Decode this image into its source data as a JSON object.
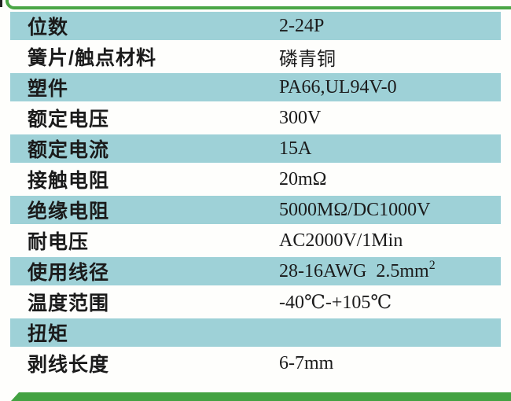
{
  "colors": {
    "row_shade_teal": "#9ed1d7",
    "accent_green": "#43a242",
    "text": "#1b1b1b"
  },
  "table": {
    "rows": [
      {
        "label": "位数",
        "value": "2-24P"
      },
      {
        "label": "簧片/触点材料",
        "value": "磷青铜"
      },
      {
        "label": "塑件",
        "value": "PA66,UL94V-0"
      },
      {
        "label": "额定电压",
        "value": "300V"
      },
      {
        "label": "额定电流",
        "value": "15A"
      },
      {
        "label": "接触电阻",
        "value": "20mΩ"
      },
      {
        "label": "绝缘电阻",
        "value": "5000MΩ/DC1000V"
      },
      {
        "label": "耐电压",
        "value": "AC2000V/1Min"
      },
      {
        "label": "使用线径",
        "value": "28-16AWG  2.5mm",
        "value_sup": "2"
      },
      {
        "label": "温度范围",
        "value": "-40℃-+105℃"
      },
      {
        "label": "扭矩",
        "value": ""
      },
      {
        "label": "剥线长度",
        "value": "6-7mm"
      }
    ]
  }
}
